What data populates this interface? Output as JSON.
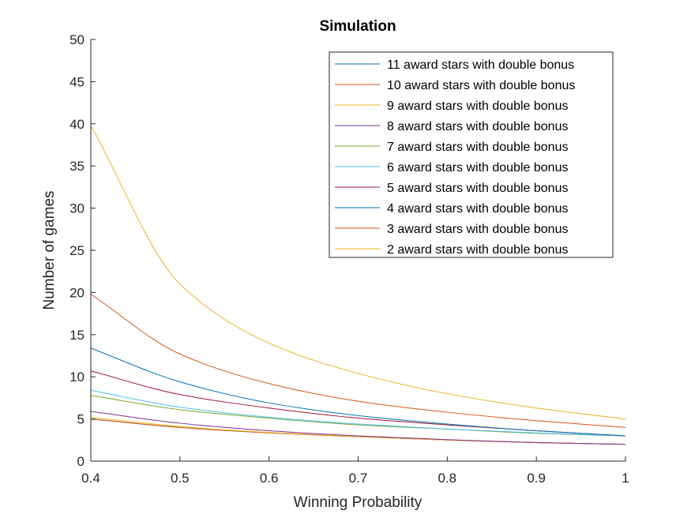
{
  "chart_data": {
    "type": "line",
    "title": "Simulation",
    "xlabel": "Winning Probability",
    "ylabel": "Number of games",
    "xlim": [
      0.4,
      1
    ],
    "ylim": [
      0,
      50
    ],
    "xticks": [
      0.4,
      0.5,
      0.6,
      0.7,
      0.8,
      0.9,
      1
    ],
    "xtick_labels": [
      "0.4",
      "0.5",
      "0.6",
      "0.7",
      "0.8",
      "0.9",
      "1"
    ],
    "yticks": [
      0,
      5,
      10,
      15,
      20,
      25,
      30,
      35,
      40,
      45,
      50
    ],
    "ytick_labels": [
      "0",
      "5",
      "10",
      "15",
      "20",
      "25",
      "30",
      "35",
      "40",
      "45",
      "50"
    ],
    "grid": false,
    "legend_position": "top-right",
    "series": [
      {
        "name": "11 award stars with double bonus",
        "color": "#0072BD",
        "x": [
          0.4,
          0.5,
          0.6,
          0.7,
          0.8,
          0.9,
          1.0
        ],
        "y": [
          5.0,
          4.0,
          3.35,
          2.9,
          2.5,
          2.2,
          2.0
        ]
      },
      {
        "name": "10 award stars with double bonus",
        "color": "#D95319",
        "x": [
          0.4,
          0.5,
          0.6,
          0.7,
          0.8,
          0.9,
          1.0
        ],
        "y": [
          5.0,
          4.0,
          3.35,
          2.9,
          2.5,
          2.2,
          2.0
        ]
      },
      {
        "name": "9 award stars with double bonus",
        "color": "#EDB120",
        "x": [
          0.4,
          0.5,
          0.6,
          0.7,
          0.8,
          0.9,
          1.0
        ],
        "y": [
          5.2,
          4.1,
          3.4,
          2.9,
          2.5,
          2.2,
          2.0
        ]
      },
      {
        "name": "8 award stars with double bonus",
        "color": "#7E2F8E",
        "x": [
          0.4,
          0.5,
          0.6,
          0.7,
          0.8,
          0.9,
          1.0
        ],
        "y": [
          5.9,
          4.5,
          3.6,
          3.0,
          2.55,
          2.2,
          2.0
        ]
      },
      {
        "name": "7 award stars with double bonus",
        "color": "#77AC30",
        "x": [
          0.4,
          0.5,
          0.6,
          0.7,
          0.8,
          0.9,
          1.0
        ],
        "y": [
          7.8,
          6.1,
          5.1,
          4.3,
          3.8,
          3.3,
          3.0
        ]
      },
      {
        "name": "6 award stars with double bonus",
        "color": "#4DBEEE",
        "x": [
          0.4,
          0.5,
          0.6,
          0.7,
          0.8,
          0.9,
          1.0
        ],
        "y": [
          8.4,
          6.4,
          5.2,
          4.4,
          3.8,
          3.35,
          3.0
        ]
      },
      {
        "name": "5 award stars with double bonus",
        "color": "#A2142F",
        "x": [
          0.4,
          0.5,
          0.6,
          0.7,
          0.8,
          0.9,
          1.0
        ],
        "y": [
          10.7,
          7.9,
          6.3,
          5.1,
          4.3,
          3.6,
          3.0
        ]
      },
      {
        "name": "4 award stars with double bonus",
        "color": "#0072BD",
        "x": [
          0.4,
          0.5,
          0.6,
          0.7,
          0.8,
          0.9,
          1.0
        ],
        "y": [
          13.4,
          9.4,
          6.9,
          5.4,
          4.4,
          3.6,
          3.0
        ]
      },
      {
        "name": "3 award stars with double bonus",
        "color": "#D95319",
        "x": [
          0.4,
          0.5,
          0.6,
          0.7,
          0.8,
          0.9,
          1.0
        ],
        "y": [
          19.8,
          12.7,
          9.2,
          7.1,
          5.8,
          4.8,
          4.0
        ]
      },
      {
        "name": "2 award stars with double bonus",
        "color": "#EDB120",
        "x": [
          0.4,
          0.5,
          0.6,
          0.7,
          0.8,
          0.9,
          1.0
        ],
        "y": [
          39.8,
          21.0,
          14.0,
          10.4,
          8.0,
          6.3,
          5.0
        ]
      }
    ]
  }
}
